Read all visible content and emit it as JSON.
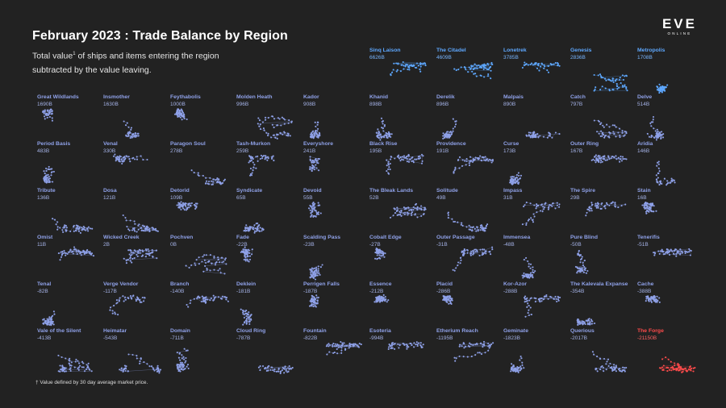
{
  "chart_data": {
    "type": "small-multiples",
    "title": "February 2023 : Trade Balance by Region",
    "subtitle_part1": "Total value",
    "subtitle_sup": "1",
    "subtitle_part2": " of ships and items entering the region subtracted by the value leaving.",
    "footnote": "† Value defined by 30 day average market price.",
    "colors": {
      "positive_top": "#5ea8ff",
      "standard": "#8fa1e8",
      "forge": "#ff4b4b"
    },
    "regions": [
      {
        "name": "Sinq Laison",
        "value": "6626B"
      },
      {
        "name": "The Citadel",
        "value": "4609B"
      },
      {
        "name": "Lonetrek",
        "value": "3785B"
      },
      {
        "name": "Genesis",
        "value": "2836B"
      },
      {
        "name": "Metropolis",
        "value": "1708B"
      },
      {
        "name": "Great Wildlands",
        "value": "1690B"
      },
      {
        "name": "Insmother",
        "value": "1630B"
      },
      {
        "name": "Feythabolis",
        "value": "1000B"
      },
      {
        "name": "Molden Heath",
        "value": "996B"
      },
      {
        "name": "Kador",
        "value": "908B"
      },
      {
        "name": "Khanid",
        "value": "898B"
      },
      {
        "name": "Derelik",
        "value": "896B"
      },
      {
        "name": "Malpais",
        "value": "890B"
      },
      {
        "name": "Catch",
        "value": "797B"
      },
      {
        "name": "Delve",
        "value": "514B"
      },
      {
        "name": "Period Basis",
        "value": "483B"
      },
      {
        "name": "Venal",
        "value": "330B"
      },
      {
        "name": "Paragon Soul",
        "value": "278B"
      },
      {
        "name": "Tash-Murkon",
        "value": "259B"
      },
      {
        "name": "Everyshore",
        "value": "241B"
      },
      {
        "name": "Black Rise",
        "value": "195B"
      },
      {
        "name": "Providence",
        "value": "191B"
      },
      {
        "name": "Curse",
        "value": "173B"
      },
      {
        "name": "Outer Ring",
        "value": "167B"
      },
      {
        "name": "Aridia",
        "value": "146B"
      },
      {
        "name": "Tribute",
        "value": "136B"
      },
      {
        "name": "Dosa",
        "value": "121B"
      },
      {
        "name": "Detorid",
        "value": "109B"
      },
      {
        "name": "Syndicate",
        "value": "65B"
      },
      {
        "name": "Devoid",
        "value": "55B"
      },
      {
        "name": "The Bleak Lands",
        "value": "52B"
      },
      {
        "name": "Solitude",
        "value": "49B"
      },
      {
        "name": "Impass",
        "value": "31B"
      },
      {
        "name": "The Spire",
        "value": "29B"
      },
      {
        "name": "Stain",
        "value": "16B"
      },
      {
        "name": "Omist",
        "value": "11B"
      },
      {
        "name": "Wicked Creek",
        "value": "2B"
      },
      {
        "name": "Pochven",
        "value": "0B"
      },
      {
        "name": "Fade",
        "value": "-22B"
      },
      {
        "name": "Scalding Pass",
        "value": "-23B"
      },
      {
        "name": "Cobalt Edge",
        "value": "-27B"
      },
      {
        "name": "Outer Passage",
        "value": "-31B"
      },
      {
        "name": "Immensea",
        "value": "-48B"
      },
      {
        "name": "Pure Blind",
        "value": "-50B"
      },
      {
        "name": "Tenerifis",
        "value": "-51B"
      },
      {
        "name": "Tenal",
        "value": "-82B"
      },
      {
        "name": "Verge Vendor",
        "value": "-117B"
      },
      {
        "name": "Branch",
        "value": "-140B"
      },
      {
        "name": "Deklein",
        "value": "-181B"
      },
      {
        "name": "Perrigen Falls",
        "value": "-187B"
      },
      {
        "name": "Essence",
        "value": "-212B"
      },
      {
        "name": "Placid",
        "value": "-286B"
      },
      {
        "name": "Kor-Azor",
        "value": "-288B"
      },
      {
        "name": "The Kalevala Expanse",
        "value": "-354B"
      },
      {
        "name": "Cache",
        "value": "-388B"
      },
      {
        "name": "Vale of the Silent",
        "value": "-413B"
      },
      {
        "name": "Heimatar",
        "value": "-543B"
      },
      {
        "name": "Domain",
        "value": "-711B"
      },
      {
        "name": "Cloud Ring",
        "value": "-787B"
      },
      {
        "name": "Fountain",
        "value": "-822B"
      },
      {
        "name": "Esoteria",
        "value": "-994B"
      },
      {
        "name": "Etherium Reach",
        "value": "-1195B"
      },
      {
        "name": "Geminate",
        "value": "-1823B"
      },
      {
        "name": "Querious",
        "value": "-2017B"
      },
      {
        "name": "The Forge",
        "value": "-21150B"
      }
    ]
  },
  "logo": {
    "main": "EVE",
    "sub": "ONLINE"
  }
}
